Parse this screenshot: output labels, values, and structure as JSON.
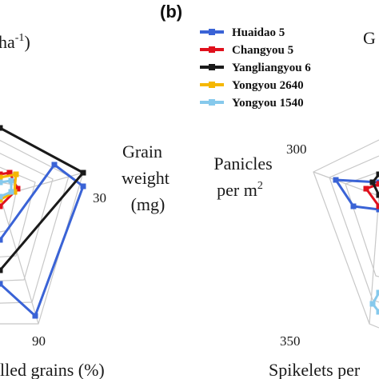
{
  "panel_label": "(b)",
  "left_panel": {
    "title_fragment_base": "ha",
    "title_fragment_sup": "-1",
    "title_fragment_close": ")",
    "axis_grain_weight": [
      "Grain",
      "weight",
      "(mg)"
    ],
    "axis_filled_grains": "lled grains (%)",
    "tick_grain_weight_max": "30",
    "tick_filled_grains_max": "90"
  },
  "right_panel": {
    "title_fragment": "G",
    "axis_panicles_line1": "Panicles",
    "axis_panicles_line2_base": "per m",
    "axis_panicles_line2_sup": "2",
    "axis_spikelets": "Spikelets per",
    "tick_panicles_max": "300",
    "tick_spikelets_max": "350"
  },
  "colors": {
    "Huaidao 5": "#3a63d6",
    "Changyou 5": "#e0101c",
    "Yangliangyou 6": "#1a1a1a",
    "Yongyou 2640": "#f5b700",
    "Yongyou 1540": "#86c9ec",
    "grid": "#c8c8c8"
  },
  "chart_data": [
    {
      "type": "radar",
      "axes_visible": [
        "Grain weight (mg)",
        "Filled grains (%)"
      ],
      "grid": true,
      "legend": "top-center",
      "series": [
        {
          "name": "Huaidao 5",
          "points": [
            [
              0,
              300
            ],
            [
              68,
              206
            ],
            [
              104,
              233
            ],
            [
              44,
              395
            ],
            [
              0,
              355
            ]
          ]
        },
        {
          "name": "Changyou 5",
          "points": [
            [
              0,
              218
            ],
            [
              12,
              216
            ],
            [
              22,
              236
            ],
            [
              0,
              258
            ]
          ]
        },
        {
          "name": "Yangliangyou 6",
          "points": [
            [
              0,
              160
            ],
            [
              104,
              216
            ],
            [
              0,
              338
            ]
          ]
        },
        {
          "name": "Yongyou 2640",
          "points": [
            [
              0,
              222
            ],
            [
              20,
              218
            ],
            [
              18,
              240
            ],
            [
              0,
              250
            ]
          ]
        },
        {
          "name": "Yongyou 1540",
          "points": [
            [
              0,
              228
            ],
            [
              14,
              226
            ],
            [
              14,
              240
            ],
            [
              0,
              246
            ]
          ]
        }
      ]
    },
    {
      "type": "radar",
      "axes_visible": [
        "Panicles per m2",
        "Spikelets per"
      ],
      "grid": true,
      "series": [
        {
          "name": "Huaidao 5",
          "points": [
            [
              474,
              228
            ],
            [
              420,
              225
            ],
            [
              442,
              258
            ],
            [
              474,
              262
            ]
          ]
        },
        {
          "name": "Changyou 5",
          "points": [
            [
              474,
              230
            ],
            [
              458,
              236
            ],
            [
              474,
              258
            ]
          ]
        },
        {
          "name": "Yangliangyou 6",
          "points": [
            [
              474,
              218
            ],
            [
              466,
              228
            ],
            [
              474,
              244
            ]
          ]
        },
        {
          "name": "Yongyou 1540",
          "points": [
            [
              474,
              366
            ],
            [
              466,
              380
            ],
            [
              474,
              390
            ]
          ]
        }
      ]
    }
  ],
  "legend": {
    "items": [
      {
        "label": "Huaidao 5",
        "color": "#3a63d6"
      },
      {
        "label": "Changyou 5",
        "color": "#e0101c"
      },
      {
        "label": "Yangliangyou 6",
        "color": "#1a1a1a"
      },
      {
        "label": "Yongyou 2640",
        "color": "#f5b700"
      },
      {
        "label": "Yongyou 1540",
        "color": "#86c9ec"
      }
    ]
  }
}
